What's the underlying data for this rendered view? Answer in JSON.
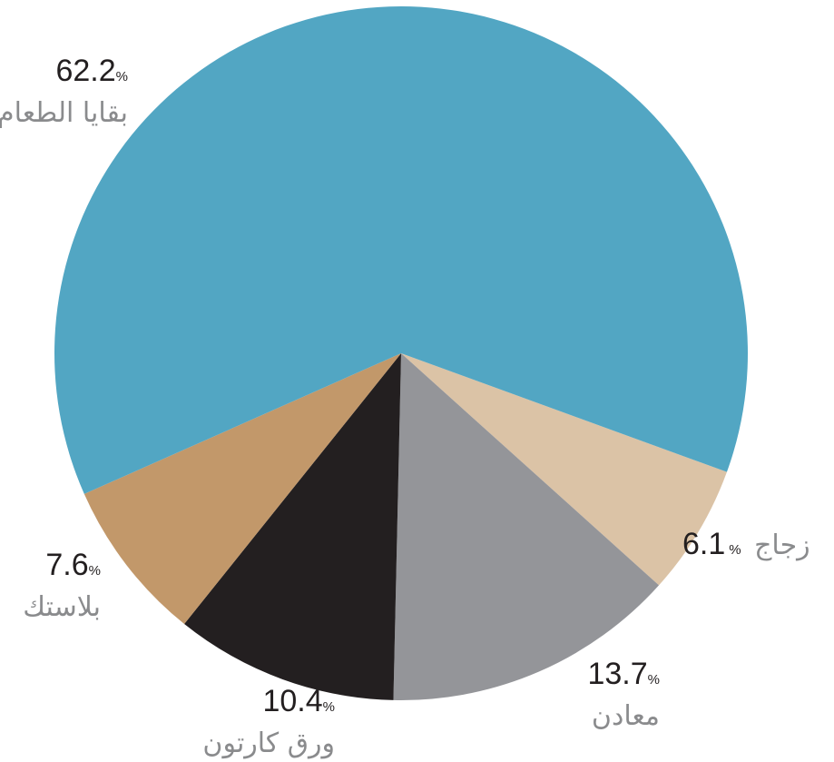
{
  "chart_data": {
    "type": "pie",
    "slices": [
      {
        "label": "بقايا الطعام",
        "value": 62.2,
        "color": "#52a6c3"
      },
      {
        "label": "زجاج",
        "value": 6.1,
        "color": "#dbc3a6"
      },
      {
        "label": "معادن",
        "value": 13.7,
        "color": "#949599"
      },
      {
        "label": "ورق كارتون",
        "value": 10.4,
        "color": "#231f20"
      },
      {
        "label": "بلاستك",
        "value": 7.6,
        "color": "#c2986a"
      }
    ],
    "value_display": [
      "62.2",
      "6.1",
      "13.7",
      "10.4",
      "7.6"
    ],
    "percent_symbol": "%"
  }
}
